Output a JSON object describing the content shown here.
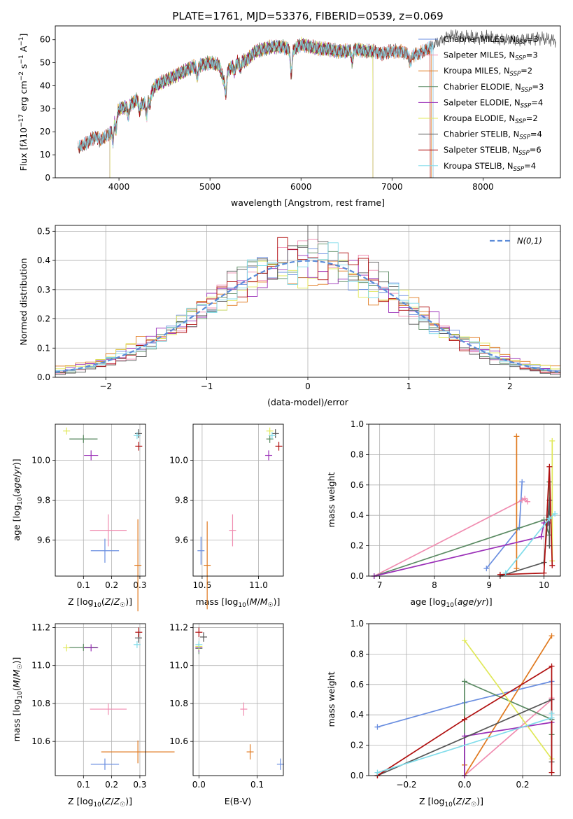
{
  "colors": [
    "#6a8ee0",
    "#f08cb0",
    "#e07a20",
    "#5a8a62",
    "#9b30b8",
    "#e0e858",
    "#555555",
    "#b01010",
    "#80dcea"
  ],
  "chart_data": [
    {
      "id": "spectrum",
      "type": "line",
      "title": "PLATE=1761, MJD=53376, FIBERID=0539, z=0.069",
      "xlabel": "wavelength [Angstrom, rest frame]",
      "ylabel": "Flux [f_λ10^-17 erg cm^-2 s^-1 A^-1]",
      "xlim": [
        3300,
        8850
      ],
      "ylim": [
        0,
        66
      ],
      "xticks": [
        "4000",
        "5000",
        "6000",
        "7000",
        "8000"
      ],
      "yticks": [
        "0",
        "10",
        "20",
        "30",
        "40",
        "50",
        "60"
      ],
      "series": [
        {
          "name": "Chabrier MILES",
          "nssp": "3",
          "range": [
            3550,
            7450
          ]
        },
        {
          "name": "Salpeter MILES",
          "nssp": "3",
          "range": [
            3550,
            7450
          ]
        },
        {
          "name": "Kroupa MILES",
          "nssp": "2",
          "range": [
            3550,
            7430
          ]
        },
        {
          "name": "Chabrier ELODIE",
          "nssp": "3",
          "range": [
            3900,
            6790
          ]
        },
        {
          "name": "Salpeter ELODIE",
          "nssp": "4",
          "range": [
            3900,
            6790
          ]
        },
        {
          "name": "Kroupa ELODIE",
          "nssp": "2",
          "range": [
            3900,
            6790
          ]
        },
        {
          "name": "Chabrier STELIB",
          "nssp": "4",
          "range": [
            3550,
            8800
          ]
        },
        {
          "name": "Salpeter STELIB",
          "nssp": "6",
          "range": [
            3550,
            7420
          ]
        },
        {
          "name": "Kroupa STELIB",
          "nssp": "4",
          "range": [
            3550,
            7450
          ]
        }
      ],
      "profile": [
        [
          3550,
          13
        ],
        [
          3600,
          14
        ],
        [
          3650,
          15
        ],
        [
          3700,
          17
        ],
        [
          3750,
          18
        ],
        [
          3800,
          16
        ],
        [
          3850,
          18
        ],
        [
          3900,
          19
        ],
        [
          3950,
          26
        ],
        [
          4000,
          30
        ],
        [
          4100,
          31
        ],
        [
          4200,
          34
        ],
        [
          4250,
          32
        ],
        [
          4300,
          33
        ],
        [
          4400,
          40
        ],
        [
          4500,
          42
        ],
        [
          4600,
          44
        ],
        [
          4700,
          46
        ],
        [
          4800,
          48
        ],
        [
          4900,
          49
        ],
        [
          5000,
          50
        ],
        [
          5100,
          49
        ],
        [
          5150,
          42
        ],
        [
          5200,
          47
        ],
        [
          5300,
          50
        ],
        [
          5400,
          51
        ],
        [
          5500,
          55
        ],
        [
          5600,
          56
        ],
        [
          5700,
          57
        ],
        [
          5800,
          57
        ],
        [
          5900,
          55
        ],
        [
          6000,
          58
        ],
        [
          6100,
          57
        ],
        [
          6200,
          56
        ],
        [
          6300,
          56
        ],
        [
          6400,
          55
        ],
        [
          6500,
          55
        ],
        [
          6600,
          56
        ],
        [
          6700,
          55
        ],
        [
          6800,
          55
        ],
        [
          6900,
          54
        ],
        [
          7000,
          55
        ],
        [
          7100,
          55
        ],
        [
          7200,
          53
        ],
        [
          7300,
          54
        ],
        [
          7400,
          56
        ],
        [
          7500,
          59
        ],
        [
          7600,
          61
        ],
        [
          7700,
          62
        ],
        [
          7800,
          61
        ],
        [
          7900,
          61
        ],
        [
          8000,
          61
        ],
        [
          8100,
          61
        ],
        [
          8200,
          60
        ],
        [
          8300,
          60
        ],
        [
          8400,
          60
        ],
        [
          8500,
          60
        ],
        [
          8600,
          61
        ],
        [
          8700,
          60
        ],
        [
          8800,
          60
        ]
      ],
      "dips": [
        [
          3934,
          8
        ],
        [
          3968,
          7
        ],
        [
          4102,
          4
        ],
        [
          4226,
          4
        ],
        [
          4304,
          6
        ],
        [
          4340,
          4
        ],
        [
          4861,
          5
        ],
        [
          5175,
          8
        ],
        [
          5270,
          3
        ],
        [
          5335,
          3
        ],
        [
          5893,
          10
        ],
        [
          6563,
          5
        ],
        [
          7200,
          4
        ]
      ]
    },
    {
      "id": "residuals",
      "type": "histogram",
      "xlabel": "(data-model)/error",
      "ylabel": "Normed distribution",
      "legend_label": "N(0,1)",
      "legend_position": "top-right",
      "xlim": [
        -2.5,
        2.5
      ],
      "ylim": [
        0,
        0.52
      ],
      "xticks": [
        "−2",
        "−1",
        "0",
        "1",
        "2"
      ],
      "yticks": [
        "0.0",
        "0.1",
        "0.2",
        "0.3",
        "0.4",
        "0.5"
      ],
      "bin_width": 0.1,
      "spread": [
        1.02,
        0.94,
        1.12,
        0.97,
        1.05,
        1.08,
        0.9,
        0.96,
        1.0
      ]
    },
    {
      "id": "z-age",
      "type": "scatter",
      "xlabel": "Z [log10(Z/Z☉)]",
      "ylabel": "age [log10(age/yr)]",
      "xlim": [
        0.0,
        0.32
      ],
      "ylim": [
        9.42,
        10.18
      ],
      "xticks": [
        "0.1",
        "0.2",
        "0.3"
      ],
      "yticks": [
        "9.6",
        "9.8",
        "10.0"
      ],
      "points": [
        {
          "x": 0.176,
          "xe": 0.05,
          "y": 9.547,
          "ye": 0.06
        },
        {
          "x": 0.188,
          "xe": 0.065,
          "y": 9.649,
          "ye": 0.08
        },
        {
          "x": 0.293,
          "xe": 0.0,
          "y": 9.474,
          "ye": 0.23
        },
        {
          "x": 0.1,
          "xe": 0.05,
          "y": 10.106,
          "ye": 0.02
        },
        {
          "x": 0.127,
          "xe": 0.025,
          "y": 10.024,
          "ye": 0.025
        },
        {
          "x": 0.04,
          "xe": 0.012,
          "y": 10.146,
          "ye": 0.0
        },
        {
          "x": 0.295,
          "xe": 0.0,
          "y": 10.133,
          "ye": 0.022
        },
        {
          "x": 0.296,
          "xe": 0.0,
          "y": 10.07,
          "ye": 0.022
        },
        {
          "x": 0.29,
          "xe": 0.008,
          "y": 10.123,
          "ye": 0.01
        }
      ]
    },
    {
      "id": "mass-age",
      "type": "scatter",
      "xlabel": "mass [log10(M/M☉)]",
      "ylabel": "",
      "xlim": [
        10.42,
        11.22
      ],
      "ylim": [
        9.42,
        10.18
      ],
      "xticks": [
        "10.5",
        "11.0"
      ],
      "yticks": [
        "9.6",
        "9.8",
        "10.0"
      ],
      "points": [
        {
          "x": 10.49,
          "xe": 0.0,
          "y": 9.547,
          "ye": 0.07
        },
        {
          "x": 10.77,
          "xe": 0.0,
          "y": 9.649,
          "ye": 0.08
        },
        {
          "x": 10.545,
          "xe": 0.0,
          "y": 9.474,
          "ye": 0.22
        },
        {
          "x": 11.1,
          "xe": 0.02,
          "y": 10.106,
          "ye": 0.02
        },
        {
          "x": 11.09,
          "xe": 0.0,
          "y": 10.024,
          "ye": 0.025
        },
        {
          "x": 11.1,
          "xe": 0.0,
          "y": 10.146,
          "ye": 0.0
        },
        {
          "x": 11.15,
          "xe": 0.0,
          "y": 10.133,
          "ye": 0.022
        },
        {
          "x": 11.18,
          "xe": 0.0,
          "y": 10.07,
          "ye": 0.022
        },
        {
          "x": 11.12,
          "xe": 0.0,
          "y": 10.123,
          "ye": 0.012
        }
      ]
    },
    {
      "id": "weights-age",
      "type": "line",
      "xlabel": "age [log10(age/yr)]",
      "ylabel": "mass weight",
      "xlim": [
        6.8,
        10.3
      ],
      "ylim": [
        0,
        1.0
      ],
      "xticks": [
        "7",
        "8",
        "9",
        "10"
      ],
      "yticks": [
        "0.0",
        "0.2",
        "0.4",
        "0.6",
        "0.8",
        "1.0"
      ],
      "series": [
        {
          "x": [
            8.95,
            9.55,
            9.6
          ],
          "y": [
            0.05,
            0.32,
            0.62
          ]
        },
        {
          "x": [
            6.9,
            9.6,
            9.65,
            9.7
          ],
          "y": [
            0.0,
            0.5,
            0.51,
            0.49
          ]
        },
        {
          "x": [
            9.5,
            9.5
          ],
          "y": [
            0.05,
            0.92
          ]
        },
        {
          "x": [
            6.9,
            10.0,
            10.1,
            10.1
          ],
          "y": [
            0.0,
            0.37,
            0.27,
            0.62
          ]
        },
        {
          "x": [
            6.9,
            9.95,
            10.0,
            10.08
          ],
          "y": [
            0.0,
            0.26,
            0.35,
            0.35
          ]
        },
        {
          "x": [
            10.15,
            10.15
          ],
          "y": [
            0.1,
            0.89
          ]
        },
        {
          "x": [
            9.2,
            10.0,
            10.1,
            10.1
          ],
          "y": [
            0.0,
            0.09,
            0.5,
            0.2
          ]
        },
        {
          "x": [
            9.2,
            10.0,
            10.1,
            10.15
          ],
          "y": [
            0.01,
            0.02,
            0.72,
            0.07
          ]
        },
        {
          "x": [
            9.3,
            10.1,
            10.2
          ],
          "y": [
            0.02,
            0.38,
            0.41
          ]
        }
      ]
    },
    {
      "id": "z-mass",
      "type": "scatter",
      "xlabel": "Z [log10(Z/Z☉)]",
      "ylabel": "mass [log10(M/M☉)]",
      "xlim": [
        0.0,
        0.32
      ],
      "ylim": [
        10.42,
        11.22
      ],
      "xticks": [
        "0.1",
        "0.2",
        "0.3"
      ],
      "yticks": [
        "10.6",
        "10.8",
        "11.0",
        "11.2"
      ],
      "points": [
        {
          "x": 0.176,
          "xe": 0.05,
          "y": 10.48,
          "ye": 0.03
        },
        {
          "x": 0.188,
          "xe": 0.065,
          "y": 10.77,
          "ye": 0.03
        },
        {
          "x": 0.293,
          "xe": 0.13,
          "y": 10.545,
          "ye": 0.06
        },
        {
          "x": 0.1,
          "xe": 0.05,
          "y": 11.095,
          "ye": 0.01
        },
        {
          "x": 0.127,
          "xe": 0.025,
          "y": 11.093,
          "ye": 0.01
        },
        {
          "x": 0.04,
          "xe": 0.012,
          "y": 11.093,
          "ye": 0.01
        },
        {
          "x": 0.295,
          "xe": 0.0,
          "y": 11.145,
          "ye": 0.025
        },
        {
          "x": 0.296,
          "xe": 0.0,
          "y": 11.175,
          "ye": 0.025
        },
        {
          "x": 0.29,
          "xe": 0.008,
          "y": 11.11,
          "ye": 0.012
        }
      ]
    },
    {
      "id": "ebv-mass",
      "type": "scatter",
      "xlabel": "E(B-V)",
      "ylabel": "",
      "xlim": [
        -0.01,
        0.145
      ],
      "ylim": [
        10.42,
        11.22
      ],
      "xticks": [
        "0.0",
        "0.1"
      ],
      "yticks": [
        "10.6",
        "10.8",
        "11.0",
        "11.2"
      ],
      "points": [
        {
          "x": 0.14,
          "xe": 0.0,
          "y": 10.48,
          "ye": 0.03
        },
        {
          "x": 0.077,
          "xe": 0.0,
          "y": 10.77,
          "ye": 0.035
        },
        {
          "x": 0.088,
          "xe": 0.0,
          "y": 10.545,
          "ye": 0.04
        },
        {
          "x": 0.0,
          "xe": 0.0,
          "y": 11.09,
          "ye": 0.03
        },
        {
          "x": 0.0,
          "xe": 0.0,
          "y": 11.093,
          "ye": 0.02
        },
        {
          "x": 0.0,
          "xe": 0.0,
          "y": 11.1,
          "ye": 0.02
        },
        {
          "x": 0.008,
          "xe": 0.0,
          "y": 11.15,
          "ye": 0.025
        },
        {
          "x": 0.0,
          "xe": 0.0,
          "y": 11.175,
          "ye": 0.025
        },
        {
          "x": 0.0,
          "xe": 0.0,
          "y": 11.11,
          "ye": 0.015
        }
      ]
    },
    {
      "id": "weights-z",
      "type": "line",
      "xlabel": "Z [log10(Z/Z☉)]",
      "ylabel": "mass weight",
      "xlim": [
        -0.33,
        0.33
      ],
      "ylim": [
        0,
        1.0
      ],
      "xticks": [
        "−0.2",
        "0.0",
        "0.2"
      ],
      "yticks": [
        "0.0",
        "0.2",
        "0.4",
        "0.6",
        "0.8",
        "1.0"
      ],
      "series": [
        {
          "x": [
            -0.3,
            0.0,
            0.3
          ],
          "y": [
            0.32,
            0.48,
            0.62
          ]
        },
        {
          "x": [
            0.0,
            0.3,
            0.3
          ],
          "y": [
            0.0,
            0.5,
            0.51
          ]
        },
        {
          "x": [
            0.0,
            0.0,
            0.3
          ],
          "y": [
            0.07,
            0.0,
            0.92
          ]
        },
        {
          "x": [
            0.0,
            0.0,
            0.3,
            0.3
          ],
          "y": [
            0.0,
            0.62,
            0.37,
            0.27
          ]
        },
        {
          "x": [
            0.0,
            0.0,
            0.3
          ],
          "y": [
            0.0,
            0.26,
            0.35
          ]
        },
        {
          "x": [
            0.0,
            0.3
          ],
          "y": [
            0.89,
            0.11
          ]
        },
        {
          "x": [
            -0.3,
            0.3,
            0.3
          ],
          "y": [
            0.0,
            0.5,
            0.09
          ]
        },
        {
          "x": [
            -0.3,
            0.0,
            0.3,
            0.3
          ],
          "y": [
            0.0,
            0.37,
            0.72,
            0.02
          ]
        },
        {
          "x": [
            -0.3,
            0.3,
            0.3
          ],
          "y": [
            0.02,
            0.38,
            0.41
          ]
        }
      ]
    }
  ]
}
